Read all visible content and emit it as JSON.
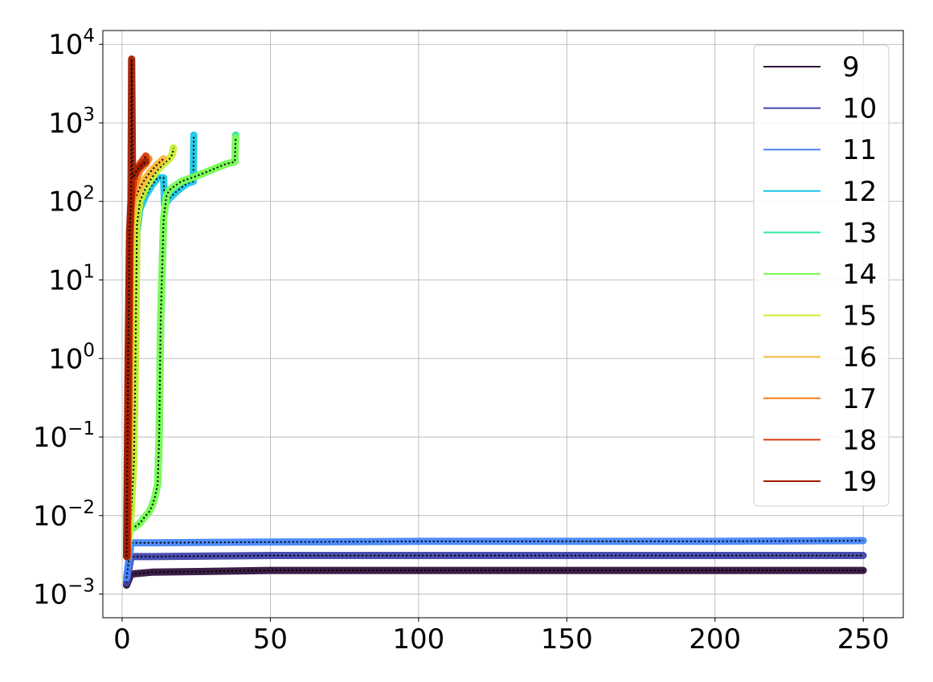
{
  "chart_data": {
    "type": "line",
    "title": "",
    "xlabel": "",
    "ylabel": "",
    "xlim": [
      -6.5,
      263.5
    ],
    "ylim": [
      0.0005,
      15000
    ],
    "yscale": "log",
    "grid": true,
    "legend_position": "top-right",
    "x_ticks": [
      {
        "value": 0,
        "label": "0"
      },
      {
        "value": 50,
        "label": "50"
      },
      {
        "value": 100,
        "label": "100"
      },
      {
        "value": 150,
        "label": "150"
      },
      {
        "value": 200,
        "label": "200"
      },
      {
        "value": 250,
        "label": "250"
      }
    ],
    "y_ticks": [
      {
        "value": 0.001,
        "base": "10",
        "exp": "−3"
      },
      {
        "value": 0.01,
        "base": "10",
        "exp": "−2"
      },
      {
        "value": 0.1,
        "base": "10",
        "exp": "−1"
      },
      {
        "value": 1,
        "base": "10",
        "exp": "0"
      },
      {
        "value": 10,
        "base": "10",
        "exp": "1"
      },
      {
        "value": 100,
        "base": "10",
        "exp": "2"
      },
      {
        "value": 1000,
        "base": "10",
        "exp": "3"
      },
      {
        "value": 10000,
        "base": "10",
        "exp": "4"
      }
    ],
    "series": [
      {
        "name": "9",
        "color": "#30123b",
        "band": 0.12,
        "outline": true,
        "x": [
          1.5,
          3,
          10,
          50,
          100,
          150,
          200,
          250
        ],
        "y": [
          0.0013,
          0.0018,
          0.0019,
          0.002,
          0.002,
          0.002,
          0.002,
          0.002
        ]
      },
      {
        "name": "10",
        "color": "#4145ab",
        "band": 0.12,
        "outline": true,
        "x": [
          1.5,
          3,
          10,
          50,
          100,
          150,
          200,
          250
        ],
        "y": [
          0.0014,
          0.003,
          0.003,
          0.0031,
          0.0031,
          0.0031,
          0.0031,
          0.0031
        ]
      },
      {
        "name": "11",
        "color": "#4686fa",
        "band": 0.12,
        "outline": true,
        "x": [
          1.5,
          3,
          10,
          50,
          100,
          150,
          200,
          250
        ],
        "y": [
          0.0016,
          0.0045,
          0.0045,
          0.0046,
          0.0047,
          0.0047,
          0.0047,
          0.0048
        ]
      },
      {
        "name": "12",
        "color": "#1ac7e8",
        "band": 0.12,
        "outline": true,
        "x": [
          2,
          2.5,
          3,
          3.5,
          4,
          5,
          6,
          8,
          10,
          12,
          14,
          14.3,
          16,
          18,
          20,
          22,
          24,
          24.2
        ],
        "y": [
          0.003,
          0.008,
          0.015,
          0.03,
          0.3,
          40,
          80,
          120,
          160,
          200,
          200,
          90,
          110,
          130,
          150,
          170,
          180,
          700
        ]
      },
      {
        "name": "13",
        "color": "#2ee89e",
        "band": 0.12,
        "outline": true,
        "x": [
          2,
          3,
          4,
          5,
          6,
          7,
          8,
          9,
          10,
          11,
          12,
          12.5,
          13,
          14,
          15,
          16,
          18,
          20,
          25,
          30,
          35,
          38,
          38.3
        ],
        "y": [
          0.005,
          0.007,
          0.007,
          0.0075,
          0.008,
          0.009,
          0.01,
          0.011,
          0.013,
          0.017,
          0.025,
          0.1,
          3,
          60,
          120,
          140,
          160,
          180,
          210,
          250,
          300,
          320,
          700
        ]
      },
      {
        "name": "14",
        "color": "#7efc56",
        "band": 0.12,
        "outline": true,
        "x": [
          2,
          3,
          4,
          5,
          6,
          7,
          8,
          9,
          10,
          11,
          12,
          12.5,
          13,
          14,
          15,
          16,
          18,
          20,
          25,
          30,
          35,
          38,
          38.3
        ],
        "y": [
          0.005,
          0.007,
          0.007,
          0.0075,
          0.008,
          0.009,
          0.01,
          0.011,
          0.013,
          0.017,
          0.025,
          0.1,
          3,
          60,
          120,
          140,
          160,
          180,
          210,
          250,
          300,
          320,
          650
        ]
      },
      {
        "name": "15",
        "color": "#c7ef34",
        "band": 0.12,
        "outline": true,
        "x": [
          2,
          3,
          4,
          4.5,
          5,
          6,
          8,
          10,
          12,
          14,
          16,
          17,
          17.3
        ],
        "y": [
          0.004,
          0.01,
          0.05,
          1,
          50,
          100,
          150,
          200,
          250,
          300,
          350,
          400,
          480
        ]
      },
      {
        "name": "16",
        "color": "#fbb838",
        "band": 0.12,
        "outline": true,
        "x": [
          1.8,
          2.2,
          2.6,
          3,
          4,
          6,
          8,
          10,
          12,
          14
        ],
        "y": [
          0.003,
          0.05,
          5,
          50,
          100,
          150,
          200,
          250,
          300,
          350
        ]
      },
      {
        "name": "17",
        "color": "#f57f1e",
        "band": 0.12,
        "outline": true,
        "x": [
          1.8,
          2.2,
          2.6,
          3,
          4,
          6,
          8,
          9
        ],
        "y": [
          0.003,
          0.1,
          20,
          80,
          150,
          250,
          300,
          350
        ]
      },
      {
        "name": "18",
        "color": "#db3a07",
        "band": 0.12,
        "outline": true,
        "x": [
          1.8,
          2.2,
          2.6,
          3,
          4,
          6,
          8
        ],
        "y": [
          0.003,
          0.2,
          30,
          100,
          200,
          300,
          380
        ]
      },
      {
        "name": "19",
        "color": "#a21d01",
        "band": 0.12,
        "outline": true,
        "x": [
          1.5,
          2,
          2.5,
          3,
          3.2,
          3.5,
          5,
          7,
          8
        ],
        "y": [
          0.003,
          1,
          40,
          100,
          6500,
          200,
          250,
          300,
          320
        ]
      }
    ]
  }
}
